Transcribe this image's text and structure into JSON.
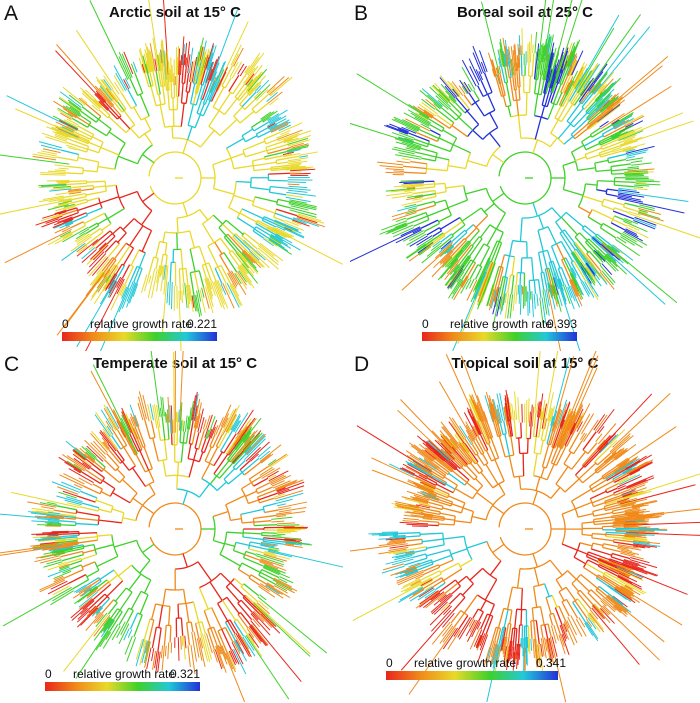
{
  "panels": [
    {
      "letter": "A",
      "title": "Arctic soil at 15° C",
      "legend": {
        "min": "0",
        "label": "relative growth rate",
        "max": "0.221"
      }
    },
    {
      "letter": "B",
      "title": "Boreal soil at 25° C",
      "legend": {
        "min": "0",
        "label": "relative growth rate",
        "max": "0.393"
      }
    },
    {
      "letter": "C",
      "title": "Temperate soil at 15° C",
      "legend": {
        "min": "0",
        "label": "relative growth rate",
        "max": "0.321"
      }
    },
    {
      "letter": "D",
      "title": "Tropical soil at 15° C",
      "legend": {
        "min": "0",
        "label": "relative growth rate",
        "max": "0.341"
      }
    }
  ],
  "colors": {
    "red": "#e8261c",
    "orange": "#f08a1a",
    "yellow": "#e9d92a",
    "green": "#3fd12a",
    "cyan": "#22c8d8",
    "blue": "#2330d8"
  }
}
